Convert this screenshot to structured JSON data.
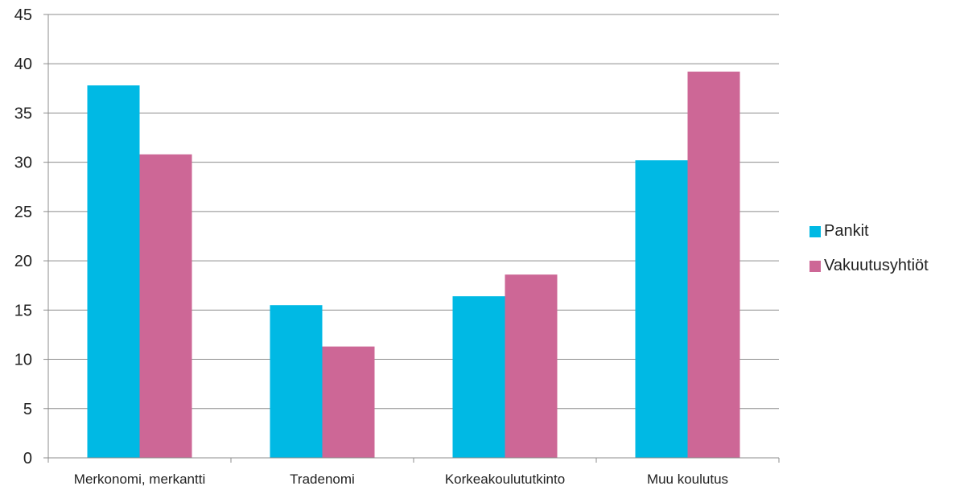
{
  "chart_data": {
    "type": "bar",
    "categories": [
      "Merkonomi, merkantti",
      "Tradenomi",
      "Korkeakoulututkinto",
      "Muu koulutus"
    ],
    "series": [
      {
        "name": "Pankit",
        "values": [
          37.8,
          15.5,
          16.4,
          30.2
        ],
        "color": "#00B9E4"
      },
      {
        "name": "Vakuutusyhtiöt",
        "values": [
          30.8,
          11.3,
          18.6,
          39.2
        ],
        "color": "#CD6796"
      }
    ],
    "ylim": [
      0,
      45
    ],
    "yticks": [
      "0",
      "5",
      "10",
      "15",
      "20",
      "25",
      "30",
      "35",
      "40",
      "45"
    ],
    "grid": true,
    "legend_position": "right"
  }
}
